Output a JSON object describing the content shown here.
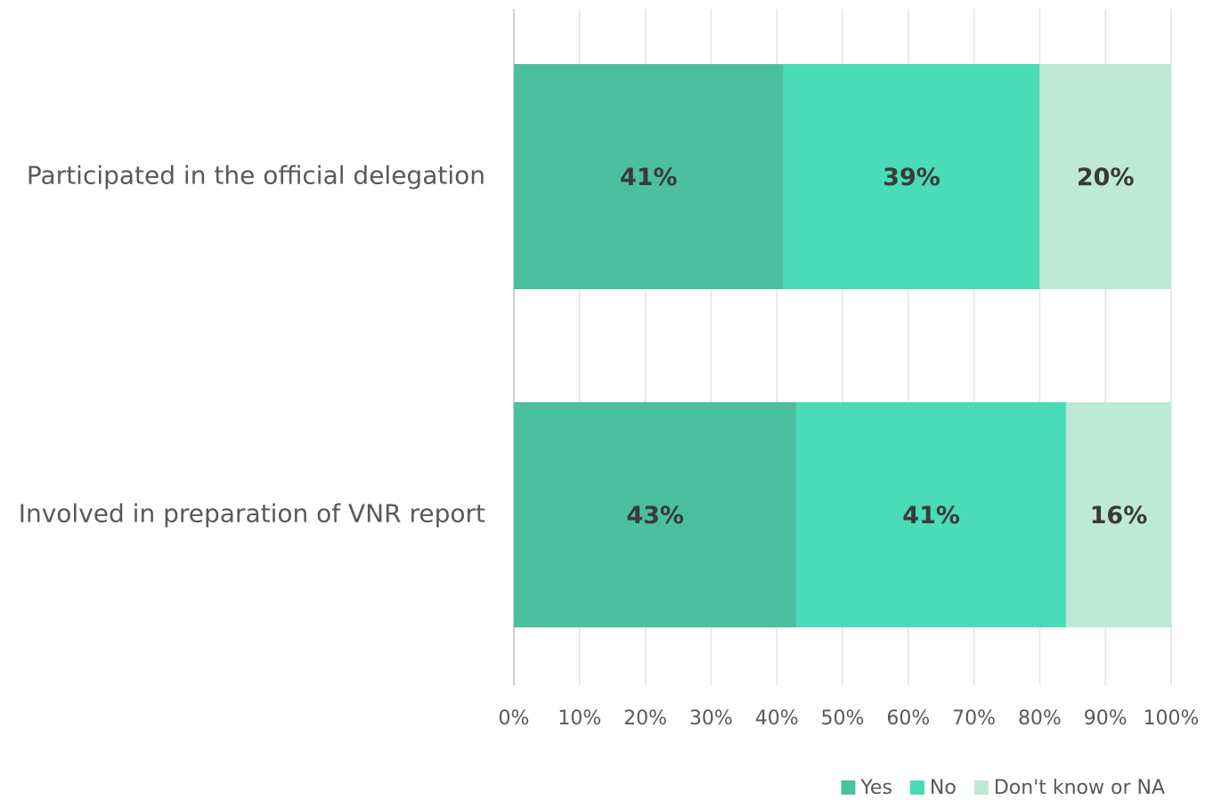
{
  "chart_data": {
    "type": "stacked-bar-horizontal",
    "categories": [
      "Participated in the official delegation",
      "Involved in preparation of VNR report"
    ],
    "series": [
      {
        "name": "Yes",
        "color": "#4cbf9f",
        "values": [
          41,
          43
        ],
        "value_labels": [
          "41%",
          "43%"
        ]
      },
      {
        "name": "No",
        "color": "#4adbb8",
        "values": [
          39,
          41
        ],
        "value_labels": [
          "39%",
          "41%"
        ]
      },
      {
        "name": "Don't know or NA",
        "color": "#bde9d6",
        "values": [
          20,
          16
        ],
        "value_labels": [
          "20%",
          "16%"
        ]
      }
    ],
    "xlim": [
      0,
      100
    ],
    "xticks": [
      {
        "value": 0,
        "label": "0%"
      },
      {
        "value": 10,
        "label": "10%"
      },
      {
        "value": 20,
        "label": "20%"
      },
      {
        "value": 30,
        "label": "30%"
      },
      {
        "value": 40,
        "label": "40%"
      },
      {
        "value": 50,
        "label": "50%"
      },
      {
        "value": 60,
        "label": "60%"
      },
      {
        "value": 70,
        "label": "70%"
      },
      {
        "value": 80,
        "label": "80%"
      },
      {
        "value": 90,
        "label": "90%"
      },
      {
        "value": 100,
        "label": "100%"
      }
    ],
    "grid": true,
    "legend": "bottom-right"
  }
}
